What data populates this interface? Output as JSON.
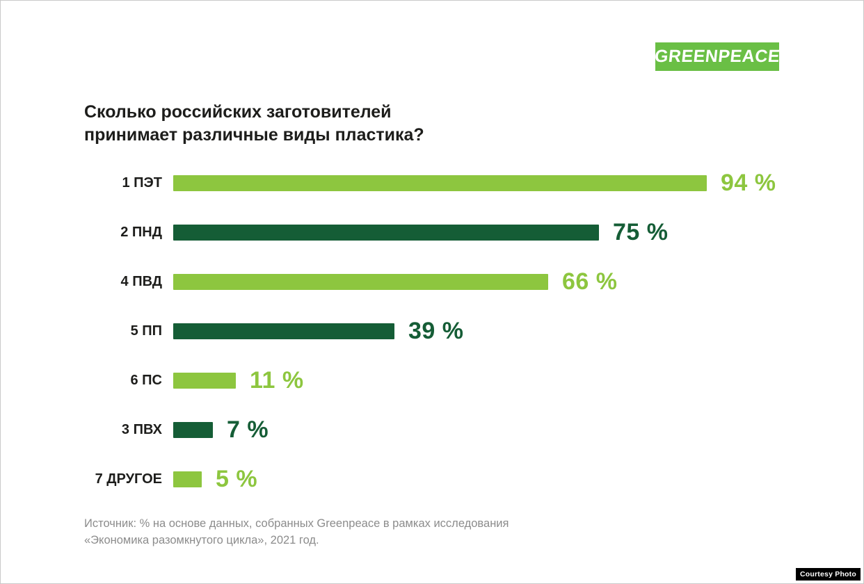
{
  "logo": {
    "text": "GREENPEACE",
    "background_color": "#6abf45",
    "text_color": "#ffffff"
  },
  "title": {
    "line1": "Сколько российских заготовителей",
    "line2": "принимает различные виды пластика?"
  },
  "chart_data": {
    "type": "bar",
    "orientation": "horizontal",
    "title": "Сколько российских заготовителей принимает различные виды пластика?",
    "categories": [
      "1 ПЭТ",
      "2 ПНД",
      "4 ПВД",
      "5 ПП",
      "6 ПС",
      "3 ПВХ",
      "7 ДРУГОЕ"
    ],
    "values": [
      94,
      75,
      66,
      39,
      11,
      7,
      5
    ],
    "value_suffix": " %",
    "series_colors": [
      "light",
      "dark",
      "light",
      "dark",
      "light",
      "dark",
      "light"
    ],
    "palette": {
      "light": "#8dc63f",
      "dark": "#155d36"
    },
    "xlim": [
      0,
      100
    ],
    "grid": false,
    "legend": false,
    "xlabel": "",
    "ylabel": ""
  },
  "source": {
    "line1": "Источник: % на основе данных, собранных Greenpeace в рамках исследования",
    "line2": "«Экономика разомкнутого цикла», 2021 год."
  },
  "watermark": {
    "text": "Courtesy Photo"
  }
}
